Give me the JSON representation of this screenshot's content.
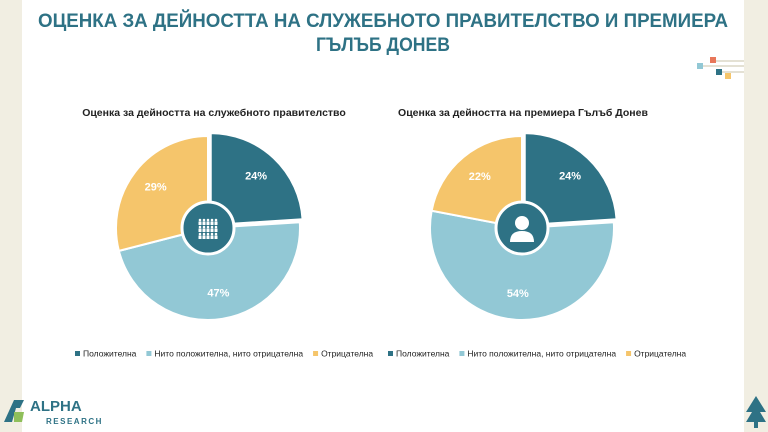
{
  "slide": {
    "title": [
      "ОЦЕНКА ЗА ДЕЙНОСТТА НА СЛУЖЕБНОТО ПРАВИТЕЛСТВО И ПРЕМИЕРА",
      "ГЪЛЪБ ДОНЕВ"
    ],
    "logo": "ALPHA",
    "logo_sub": "RESEARCH"
  },
  "chart_data": [
    {
      "type": "pie",
      "title": "Оценка за дейността на служебното правителство",
      "categories": [
        "Положителна",
        "Нито положителна, нито отрицателна",
        "Отрицателна"
      ],
      "values": [
        24,
        47,
        29
      ],
      "value_labels": [
        "24%",
        "47%",
        "29%"
      ],
      "colors": [
        "#2e7285",
        "#92c8d5",
        "#f5c56b"
      ],
      "legend": "bottom"
    },
    {
      "type": "pie",
      "title": "Оценка за дейността на премиера Гълъб Донев",
      "categories": [
        "Положителна",
        "Нито положителна, нито отрицателна",
        "Отрицателна"
      ],
      "values": [
        24,
        54,
        22
      ],
      "value_labels": [
        "24%",
        "54%",
        "22%"
      ],
      "colors": [
        "#2e7285",
        "#92c8d5",
        "#f5c56b"
      ],
      "legend": "bottom"
    }
  ]
}
